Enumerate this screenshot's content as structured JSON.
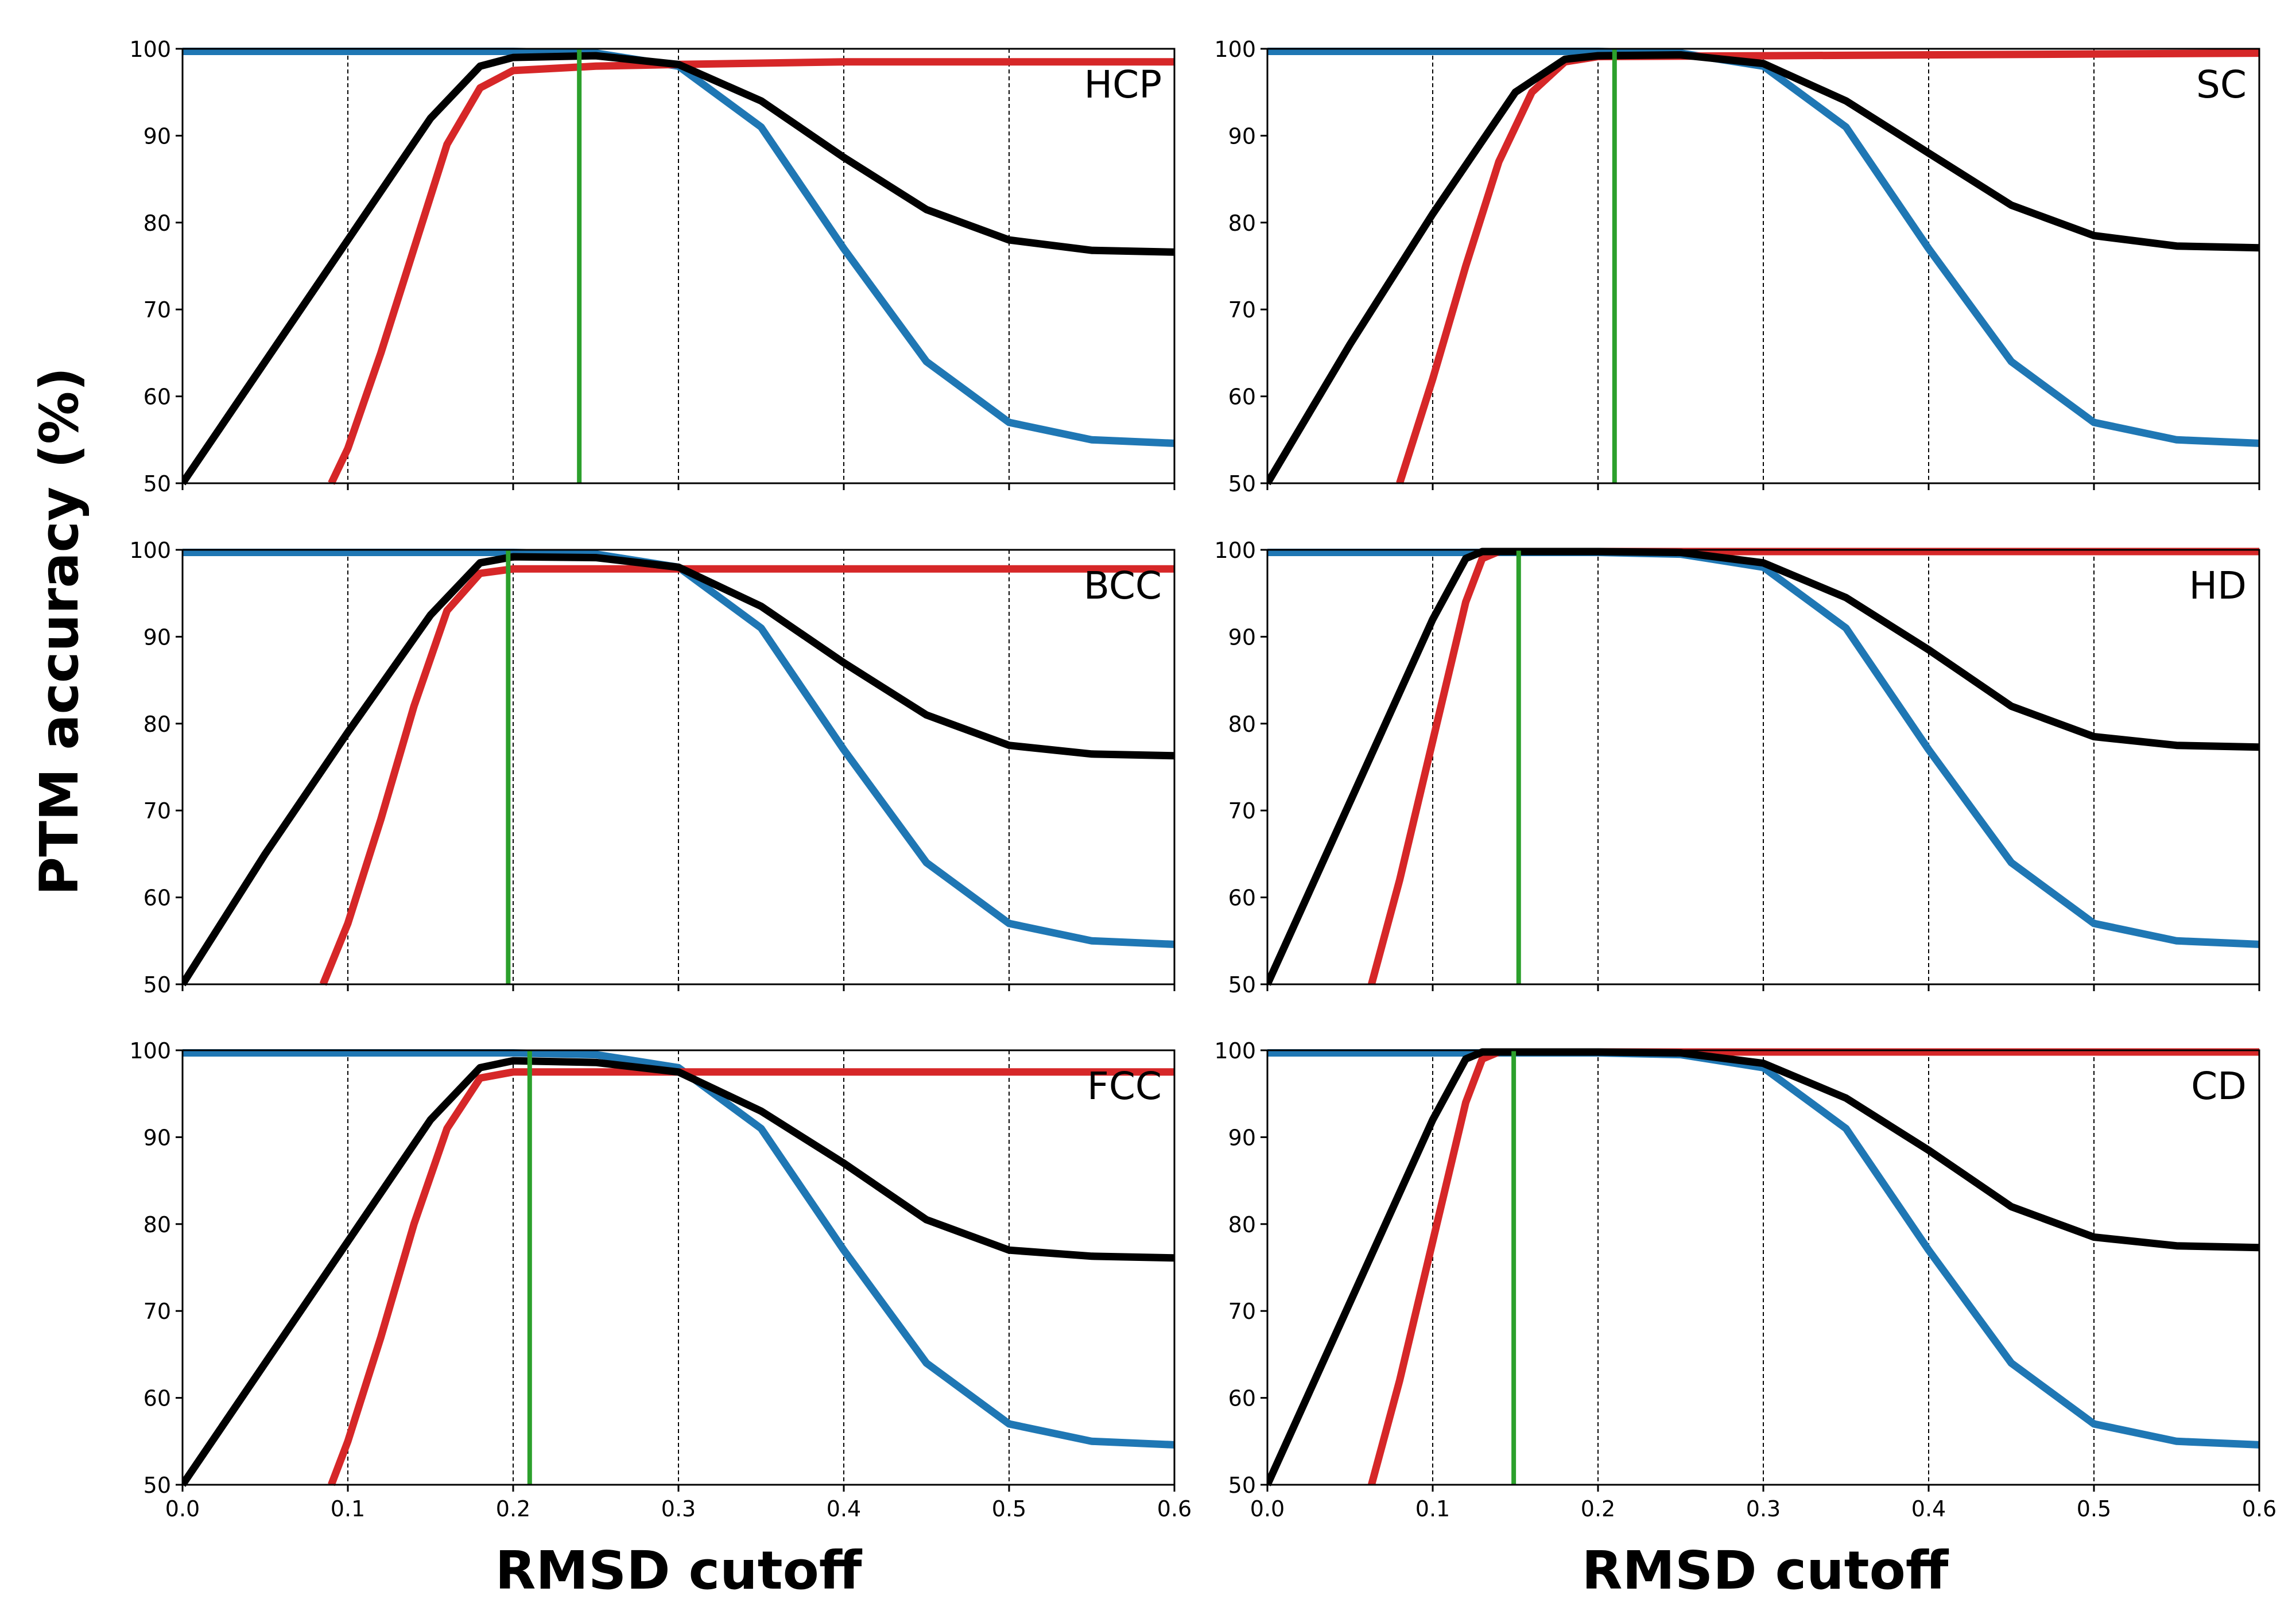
{
  "chart_data": {
    "type": "line",
    "layout": "3x2 grid of panels, shared x axis per column, shared y axis per row",
    "ylabel": "PTM accuracy (%)",
    "xlabel": "RMSD cutoff",
    "xlim": [
      0.0,
      0.6
    ],
    "ylim": [
      50,
      100
    ],
    "x_ticks": [
      "0.0",
      "0.1",
      "0.2",
      "0.3",
      "0.4",
      "0.5",
      "0.6"
    ],
    "y_ticks": [
      "50",
      "60",
      "70",
      "80",
      "90",
      "100"
    ],
    "grid": "vertical dashed lines at x = 0.1 to 0.5",
    "legend": "none",
    "series_colors": {
      "blue": "#1f77b4",
      "red": "#d62728",
      "black": "#000000",
      "green": "#2ca02c"
    },
    "panels": [
      {
        "label": "HCP",
        "optimal_cutoff": 0.24,
        "series": [
          {
            "color": "blue",
            "x": [
              0,
              0.2,
              0.25,
              0.3,
              0.35,
              0.4,
              0.45,
              0.5,
              0.55,
              0.6
            ],
            "y": [
              99.7,
              99.7,
              99.5,
              98.0,
              91.0,
              77.0,
              64.0,
              57.0,
              55.0,
              54.6
            ]
          },
          {
            "color": "red",
            "x": [
              0.09,
              0.1,
              0.12,
              0.14,
              0.16,
              0.18,
              0.2,
              0.25,
              0.3,
              0.4,
              0.6
            ],
            "y": [
              50,
              54.0,
              65.0,
              77.0,
              89.0,
              95.5,
              97.5,
              98.0,
              98.2,
              98.5,
              98.5
            ]
          },
          {
            "color": "black",
            "x": [
              0,
              0.05,
              0.1,
              0.15,
              0.18,
              0.2,
              0.25,
              0.3,
              0.35,
              0.4,
              0.45,
              0.5,
              0.55,
              0.6
            ],
            "y": [
              50,
              64.0,
              78.0,
              92.0,
              98.0,
              99.0,
              99.2,
              98.2,
              94.0,
              87.5,
              81.5,
              78.0,
              76.8,
              76.6
            ]
          }
        ]
      },
      {
        "label": "SC",
        "optimal_cutoff": 0.21,
        "series": [
          {
            "color": "blue",
            "x": [
              0,
              0.2,
              0.25,
              0.3,
              0.35,
              0.4,
              0.45,
              0.5,
              0.55,
              0.6
            ],
            "y": [
              99.7,
              99.7,
              99.5,
              98.0,
              91.0,
              77.0,
              64.0,
              57.0,
              55.0,
              54.6
            ]
          },
          {
            "color": "red",
            "x": [
              0.08,
              0.1,
              0.12,
              0.14,
              0.16,
              0.18,
              0.2,
              0.3,
              0.6
            ],
            "y": [
              50,
              62.0,
              75.0,
              87.0,
              95.0,
              98.5,
              99.1,
              99.2,
              99.5
            ]
          },
          {
            "color": "black",
            "x": [
              0,
              0.05,
              0.1,
              0.15,
              0.18,
              0.2,
              0.25,
              0.3,
              0.35,
              0.4,
              0.45,
              0.5,
              0.55,
              0.6
            ],
            "y": [
              50,
              66.0,
              81.0,
              95.0,
              98.8,
              99.2,
              99.3,
              98.3,
              94.0,
              88.0,
              82.0,
              78.5,
              77.3,
              77.1
            ]
          }
        ]
      },
      {
        "label": "BCC",
        "optimal_cutoff": 0.197,
        "series": [
          {
            "color": "blue",
            "x": [
              0,
              0.2,
              0.25,
              0.3,
              0.35,
              0.4,
              0.45,
              0.5,
              0.55,
              0.6
            ],
            "y": [
              99.7,
              99.7,
              99.5,
              98.0,
              91.0,
              77.0,
              64.0,
              57.0,
              55.0,
              54.6
            ]
          },
          {
            "color": "red",
            "x": [
              0.085,
              0.1,
              0.12,
              0.14,
              0.16,
              0.18,
              0.2,
              0.3,
              0.6
            ],
            "y": [
              50,
              57.0,
              69.0,
              82.0,
              93.0,
              97.3,
              97.8,
              97.8,
              97.8
            ]
          },
          {
            "color": "black",
            "x": [
              0,
              0.05,
              0.1,
              0.15,
              0.18,
              0.2,
              0.25,
              0.3,
              0.35,
              0.4,
              0.45,
              0.5,
              0.55,
              0.6
            ],
            "y": [
              50,
              65.0,
              79.0,
              92.5,
              98.5,
              99.2,
              99.1,
              98.0,
              93.5,
              87.0,
              81.0,
              77.5,
              76.5,
              76.3
            ]
          }
        ]
      },
      {
        "label": "HD",
        "optimal_cutoff": 0.152,
        "series": [
          {
            "color": "blue",
            "x": [
              0,
              0.2,
              0.25,
              0.3,
              0.35,
              0.4,
              0.45,
              0.5,
              0.55,
              0.6
            ],
            "y": [
              99.7,
              99.7,
              99.5,
              98.0,
              91.0,
              77.0,
              64.0,
              57.0,
              55.0,
              54.6
            ]
          },
          {
            "color": "red",
            "x": [
              0.063,
              0.08,
              0.1,
              0.12,
              0.13,
              0.14,
              0.6
            ],
            "y": [
              50,
              62.0,
              78.0,
              94.0,
              99.0,
              99.8,
              99.8
            ]
          },
          {
            "color": "black",
            "x": [
              0,
              0.05,
              0.1,
              0.12,
              0.13,
              0.2,
              0.25,
              0.3,
              0.35,
              0.4,
              0.45,
              0.5,
              0.55,
              0.6
            ],
            "y": [
              50,
              71.0,
              92.0,
              99.0,
              99.8,
              99.8,
              99.7,
              98.5,
              94.5,
              88.5,
              82.0,
              78.5,
              77.5,
              77.3
            ]
          }
        ]
      },
      {
        "label": "FCC",
        "optimal_cutoff": 0.21,
        "series": [
          {
            "color": "blue",
            "x": [
              0,
              0.2,
              0.25,
              0.3,
              0.35,
              0.4,
              0.45,
              0.5,
              0.55,
              0.6
            ],
            "y": [
              99.7,
              99.7,
              99.5,
              98.0,
              91.0,
              77.0,
              64.0,
              57.0,
              55.0,
              54.6
            ]
          },
          {
            "color": "red",
            "x": [
              0.09,
              0.1,
              0.12,
              0.14,
              0.16,
              0.18,
              0.2,
              0.3,
              0.6
            ],
            "y": [
              50,
              55.0,
              67.0,
              80.0,
              91.0,
              96.8,
              97.5,
              97.5,
              97.5
            ]
          },
          {
            "color": "black",
            "x": [
              0,
              0.05,
              0.1,
              0.15,
              0.18,
              0.2,
              0.25,
              0.3,
              0.35,
              0.4,
              0.45,
              0.5,
              0.55,
              0.6
            ],
            "y": [
              50,
              64.0,
              78.0,
              92.0,
              98.0,
              98.8,
              98.6,
              97.5,
              93.0,
              87.0,
              80.5,
              77.0,
              76.3,
              76.1
            ]
          }
        ]
      },
      {
        "label": "CD",
        "optimal_cutoff": 0.149,
        "series": [
          {
            "color": "blue",
            "x": [
              0,
              0.2,
              0.25,
              0.3,
              0.35,
              0.4,
              0.45,
              0.5,
              0.55,
              0.6
            ],
            "y": [
              99.7,
              99.7,
              99.5,
              98.0,
              91.0,
              77.0,
              64.0,
              57.0,
              55.0,
              54.6
            ]
          },
          {
            "color": "red",
            "x": [
              0.063,
              0.08,
              0.1,
              0.12,
              0.13,
              0.14,
              0.6
            ],
            "y": [
              50,
              62.0,
              78.0,
              94.0,
              99.0,
              99.8,
              99.8
            ]
          },
          {
            "color": "black",
            "x": [
              0,
              0.05,
              0.1,
              0.12,
              0.13,
              0.2,
              0.25,
              0.3,
              0.35,
              0.4,
              0.45,
              0.5,
              0.55,
              0.6
            ],
            "y": [
              50,
              71.0,
              92.0,
              99.0,
              99.8,
              99.8,
              99.7,
              98.5,
              94.5,
              88.5,
              82.0,
              78.5,
              77.5,
              77.3
            ]
          }
        ]
      }
    ]
  }
}
